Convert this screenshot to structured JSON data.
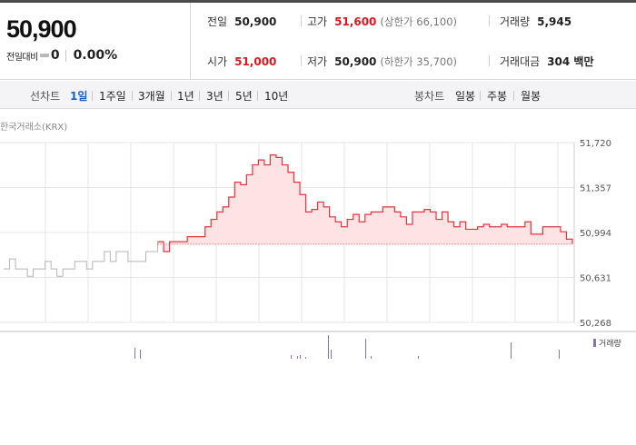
{
  "summary": {
    "current_price": "50,900",
    "change_label": "전일대비",
    "change_icon": "flat-dash-icon",
    "change_value": "0",
    "change_rate": "0.00%",
    "prev_close": {
      "label": "전일",
      "value": "50,900"
    },
    "high": {
      "label": "고가",
      "value": "51,600",
      "limit": "(상한가 66,100)"
    },
    "volume": {
      "label": "거래량",
      "value": "5,945"
    },
    "open": {
      "label": "시가",
      "value": "51,000"
    },
    "low": {
      "label": "저가",
      "value": "50,900",
      "limit": "(하한가 35,700)"
    },
    "trade_amount": {
      "label": "거래대금",
      "value": "304 백만"
    }
  },
  "toolbar": {
    "line_chart_label": "선차트",
    "line_ranges": [
      "1일",
      "1주일",
      "3개월",
      "1년",
      "3년",
      "5년",
      "10년"
    ],
    "active_range": "1일",
    "candle_chart_label": "봉차트",
    "candle_ranges": [
      "일봉",
      "주봉",
      "월봉"
    ]
  },
  "chart": {
    "source": "한국거래소(KRX)",
    "y_ticks": [
      "51,720",
      "51,357",
      "50,994",
      "50,631",
      "50,268"
    ],
    "volume_legend": "거래량",
    "colors": {
      "up_line": "#e8333b",
      "up_fill": "#fde3e4",
      "before_line": "#b4b4b4",
      "volume_bar": "#8a6fc0",
      "grid": "#e6e6e6"
    }
  },
  "chart_data": {
    "type": "line",
    "ylim": [
      50268,
      51720
    ],
    "reference_price": 50900,
    "series": [
      {
        "values": [
          50700,
          50780,
          50700,
          50700,
          50640,
          50700,
          50700,
          50760,
          50700,
          50640,
          50700,
          50700,
          50760,
          50760,
          50700,
          50760,
          50760,
          50840,
          50760,
          50840,
          50840,
          50760,
          50760,
          50760,
          50840,
          50840,
          50920,
          50840,
          50920,
          50920,
          50920,
          50960,
          50960,
          50960,
          51040,
          51100,
          51160,
          51200,
          51280,
          51400,
          51380,
          51460,
          51540,
          51580,
          51540,
          51620,
          51600,
          51540,
          51480,
          51400,
          51300,
          51160,
          51180,
          51240,
          51200,
          51120,
          51080,
          51040,
          51100,
          51140,
          51080,
          51140,
          51160,
          51160,
          51200,
          51200,
          51160,
          51120,
          51060,
          51160,
          51160,
          51180,
          51160,
          51100,
          51160,
          51080,
          51040,
          51080,
          51020,
          51020,
          51040,
          51060,
          51040,
          51040,
          51060,
          51040,
          51040,
          51040,
          51080,
          50980,
          50980,
          51040,
          51040,
          51040,
          51000,
          50940,
          50900
        ]
      }
    ]
  }
}
